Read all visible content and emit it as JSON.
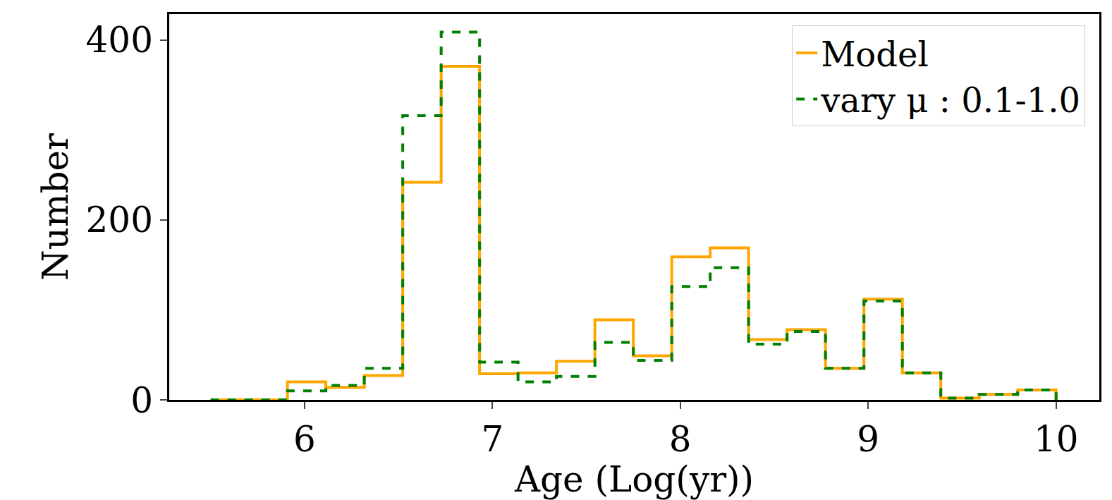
{
  "chart_data": {
    "type": "histogram",
    "x_label": "Age (Log(yr))",
    "y_label": "Number",
    "bins": [
      5.5,
      5.7045,
      5.9091,
      6.1136,
      6.3182,
      6.5227,
      6.7273,
      6.9318,
      7.1364,
      7.3409,
      7.5455,
      7.75,
      7.9545,
      8.1591,
      8.3636,
      8.5682,
      8.7727,
      8.9773,
      9.1818,
      9.3864,
      9.5909,
      9.7955,
      10.0
    ],
    "series": [
      {
        "name": "Model",
        "color": "#ffa500",
        "line_style": "solid",
        "values": [
          0,
          0,
          20,
          14,
          27,
          242,
          371,
          29,
          30,
          43,
          89,
          49,
          159,
          169,
          67,
          78,
          35,
          112,
          30,
          2,
          6,
          11
        ]
      },
      {
        "name": "vary μ : 0.1-1.0",
        "color": "#008000",
        "line_style": "dash",
        "values": [
          0,
          0,
          10,
          16,
          35,
          316,
          409,
          42,
          20,
          26,
          64,
          44,
          126,
          147,
          62,
          76,
          35,
          110,
          30,
          2,
          6,
          11
        ]
      }
    ],
    "xlim": [
      5.28,
      10.23
    ],
    "ylim": [
      0,
      429
    ],
    "xticks": [
      6,
      7,
      8,
      9,
      10
    ],
    "yticks": [
      0,
      200,
      400
    ],
    "grid": false,
    "legend": "upper right"
  }
}
